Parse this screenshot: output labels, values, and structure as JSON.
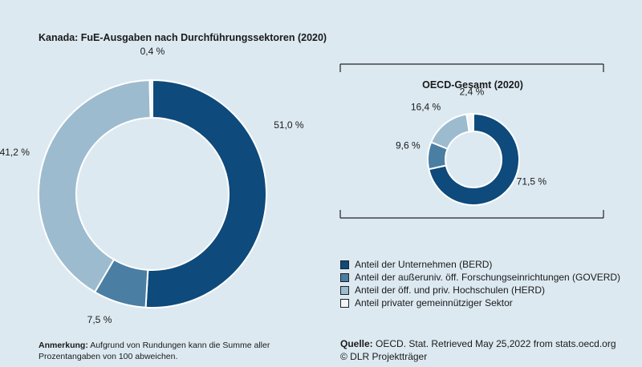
{
  "colors": {
    "berd": "#0e4a7b",
    "goverd": "#4a7ea3",
    "herd": "#9dbbcf",
    "private": "#f0f4f6",
    "background": "#dce9f1"
  },
  "chart_data": [
    {
      "type": "pie",
      "variant": "donut",
      "title": "Kanada: FuE-Ausgaben nach Durchführungssektoren (2020)",
      "categories": [
        "Anteil der Unternehmen (BERD)",
        "Anteil der außeruniv. öff. Forschungseinrichtungen (GOVERD)",
        "Anteil der öff. und priv. Hochschulen (HERD)",
        "Anteil privater gemeinnütziger Sektor"
      ],
      "values": [
        51.0,
        7.5,
        41.2,
        0.4
      ],
      "labels": [
        "51,0 %",
        "7,5 %",
        "41,2 %",
        "0,4 %"
      ]
    },
    {
      "type": "pie",
      "variant": "donut",
      "title": "OECD-Gesamt (2020)",
      "categories": [
        "Anteil der Unternehmen (BERD)",
        "Anteil der außeruniv. öff. Forschungseinrichtungen (GOVERD)",
        "Anteil der öff. und priv. Hochschulen (HERD)",
        "Anteil privater gemeinnütziger Sektor"
      ],
      "values": [
        71.5,
        9.6,
        16.4,
        2.4
      ],
      "labels": [
        "71,5 %",
        "9,6 %",
        "16,4 %",
        "2,4 %"
      ]
    }
  ],
  "legend": [
    "Anteil der Unternehmen (BERD)",
    "Anteil der außeruniv. öff. Forschungseinrichtungen (GOVERD)",
    "Anteil der öff. und priv. Hochschulen (HERD)",
    "Anteil privater gemeinnütziger Sektor"
  ],
  "note": {
    "label": "Anmerkung:",
    "text": "Aufgrund von Rundungen kann die Summe aller Prozentangaben von 100 abweichen."
  },
  "source": {
    "label": "Quelle:",
    "text": "OECD. Stat. Retrieved May 25,2022 from stats.oecd.org",
    "copyright": "© DLR Projektträger"
  }
}
